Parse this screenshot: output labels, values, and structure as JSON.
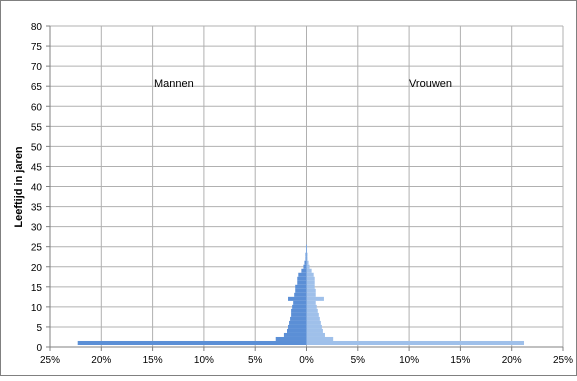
{
  "chart_data": {
    "type": "bar",
    "orientation": "horizontal",
    "ylabel": "Leeftijd in jaren",
    "xlim": [
      -25,
      25
    ],
    "ylim": [
      0,
      80
    ],
    "x_ticks": [
      "25%",
      "20%",
      "15%",
      "10%",
      "5%",
      "0%",
      "5%",
      "10%",
      "15%",
      "20%",
      "25%"
    ],
    "y_ticks": [
      "0",
      "5",
      "10",
      "15",
      "20",
      "25",
      "30",
      "35",
      "40",
      "45",
      "50",
      "55",
      "60",
      "65",
      "70",
      "75",
      "80"
    ],
    "grid": true,
    "annotations": [
      "Mannen",
      "Vrouwen"
    ],
    "colors": {
      "Mannen": "#5b8fd6",
      "Vrouwen": "#9fc0ea",
      "grid": "#b0b0b0",
      "axis": "#808080",
      "frame": "#808080"
    },
    "series": [
      {
        "name": "Mannen",
        "ages": [
          1,
          2,
          3,
          4,
          5,
          6,
          7,
          8,
          9,
          10,
          11,
          12,
          13,
          14,
          15,
          16,
          17,
          18,
          19,
          20,
          21,
          22,
          23,
          24,
          25
        ],
        "values": [
          -22.3,
          -3.0,
          -2.2,
          -1.9,
          -1.8,
          -1.7,
          -1.6,
          -1.5,
          -1.5,
          -1.4,
          -1.3,
          -1.8,
          -1.2,
          -1.1,
          -1.1,
          -0.9,
          -0.9,
          -0.8,
          -0.5,
          -0.3,
          -0.2,
          -0.1,
          -0.1,
          -0.05,
          -0.05
        ]
      },
      {
        "name": "Vrouwen",
        "ages": [
          1,
          2,
          3,
          4,
          5,
          6,
          7,
          8,
          9,
          10,
          11,
          12,
          13,
          14,
          15,
          16,
          17,
          18,
          19,
          20,
          21,
          22,
          23,
          24,
          25
        ],
        "values": [
          21.2,
          2.6,
          1.8,
          1.6,
          1.5,
          1.4,
          1.3,
          1.2,
          1.1,
          1.0,
          0.9,
          1.7,
          0.9,
          0.9,
          0.8,
          0.8,
          0.8,
          0.7,
          0.5,
          0.3,
          0.2,
          0.1,
          0.1,
          0.05,
          0.05
        ]
      }
    ]
  }
}
